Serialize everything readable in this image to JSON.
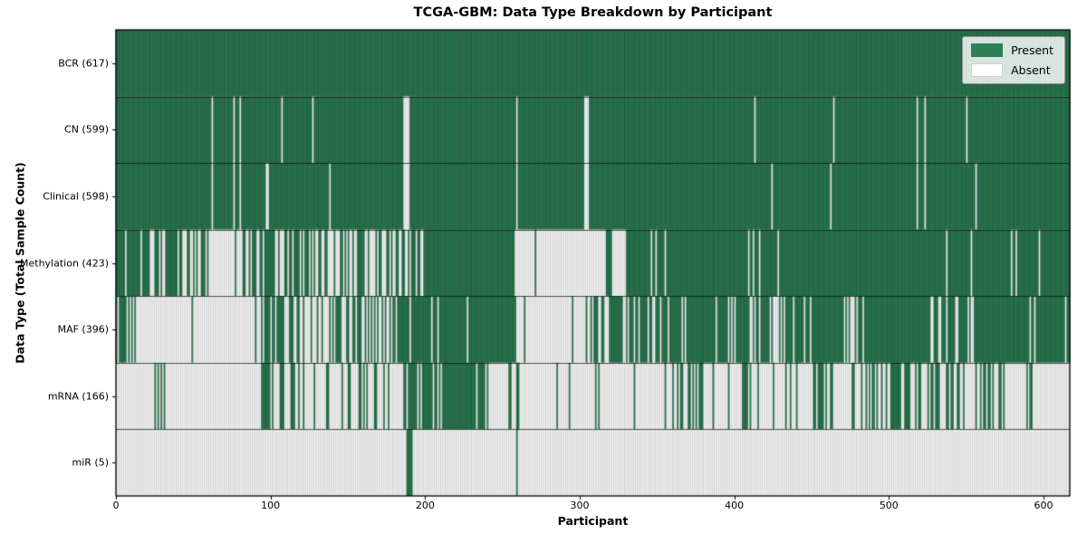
{
  "title": "TCGA-GBM: Data Type Breakdown by Participant",
  "xlabel": "Participant",
  "ylabel": "Data Type (Total Sample Count)",
  "legend": {
    "present": "Present",
    "absent": "Absent"
  },
  "colors": {
    "present_fill": "#2e8156",
    "present_edge": "rgba(12,48,30,0.85)",
    "absent_fill": "#ffffff",
    "absent_edge": "rgba(140,140,140,0.75)",
    "plot_border": "#000000",
    "row_divider": "rgba(0,0,0,0.85)",
    "tick": "#000000"
  },
  "chart_data": {
    "type": "heatmap",
    "title": "TCGA-GBM: Data Type Breakdown by Participant",
    "xlabel": "Participant",
    "ylabel": "Data Type (Total Sample Count)",
    "legend_entries": [
      "Present",
      "Absent"
    ],
    "legend_position": "upper right",
    "n_participants": 617,
    "xlim": [
      0,
      617
    ],
    "x_ticks": [
      0,
      100,
      200,
      300,
      400,
      500,
      600
    ],
    "rows": [
      {
        "name": "BCR",
        "label": "BCR (617)",
        "total_present": 617,
        "segments": [
          [
            0,
            617,
            1.0
          ]
        ],
        "absent": [],
        "present": []
      },
      {
        "name": "CN",
        "label": "CN (599)",
        "total_present": 599,
        "segments": [
          [
            0,
            617,
            1.0
          ]
        ],
        "absent": [
          62,
          76,
          80,
          107,
          127,
          186,
          187,
          188,
          189,
          259,
          303,
          304,
          305,
          413,
          464,
          518,
          523,
          550
        ],
        "present": []
      },
      {
        "name": "Clinical",
        "label": "Clinical (598)",
        "total_present": 598,
        "segments": [
          [
            0,
            617,
            1.0
          ]
        ],
        "absent": [
          62,
          76,
          80,
          97,
          98,
          138,
          186,
          187,
          188,
          189,
          259,
          303,
          304,
          305,
          424,
          462,
          518,
          523,
          556
        ],
        "present": []
      },
      {
        "name": "Methylation",
        "label": "Methylation (423)",
        "total_present": 423,
        "segments": [
          [
            0,
            18,
            0.85
          ],
          [
            18,
            60,
            0.5
          ],
          [
            60,
            86,
            0.12
          ],
          [
            86,
            103,
            0.85
          ],
          [
            103,
            140,
            0.42
          ],
          [
            140,
            200,
            0.5
          ],
          [
            200,
            259,
            0.93
          ],
          [
            259,
            317,
            0.02
          ],
          [
            317,
            321,
            0.9
          ],
          [
            321,
            330,
            0.05
          ],
          [
            330,
            412,
            0.93
          ],
          [
            412,
            413,
            0.0
          ],
          [
            413,
            617,
            0.96
          ]
        ],
        "absent": [],
        "present": []
      },
      {
        "name": "MAF",
        "label": "MAF (396)",
        "total_present": 396,
        "segments": [
          [
            0,
            8,
            0.45
          ],
          [
            8,
            30,
            0.15
          ],
          [
            30,
            94,
            0.04
          ],
          [
            94,
            115,
            0.5
          ],
          [
            115,
            131,
            0.25
          ],
          [
            131,
            160,
            0.7
          ],
          [
            160,
            184,
            0.5
          ],
          [
            184,
            259,
            0.92
          ],
          [
            259,
            307,
            0.06
          ],
          [
            307,
            323,
            0.75
          ],
          [
            323,
            355,
            0.65
          ],
          [
            355,
            408,
            0.85
          ],
          [
            408,
            440,
            0.6
          ],
          [
            440,
            475,
            0.9
          ],
          [
            475,
            480,
            0.3
          ],
          [
            480,
            517,
            0.92
          ],
          [
            517,
            556,
            0.8
          ],
          [
            556,
            617,
            0.95
          ]
        ],
        "absent": [],
        "present": []
      },
      {
        "name": "mRNA",
        "label": "mRNA (166)",
        "total_present": 166,
        "segments": [
          [
            0,
            25,
            0.0
          ],
          [
            25,
            32,
            0.5
          ],
          [
            32,
            94,
            0.0
          ],
          [
            94,
            122,
            0.6
          ],
          [
            122,
            128,
            0.1
          ],
          [
            128,
            138,
            0.6
          ],
          [
            138,
            155,
            0.2
          ],
          [
            155,
            163,
            0.55
          ],
          [
            163,
            185,
            0.3
          ],
          [
            185,
            212,
            0.7
          ],
          [
            212,
            241,
            0.8
          ],
          [
            241,
            259,
            0.04
          ],
          [
            259,
            261,
            1.0
          ],
          [
            261,
            285,
            0.02
          ],
          [
            285,
            286,
            1.0
          ],
          [
            286,
            310,
            0.02
          ],
          [
            310,
            314,
            0.8
          ],
          [
            314,
            335,
            0.02
          ],
          [
            335,
            336,
            1.0
          ],
          [
            336,
            355,
            0.02
          ],
          [
            355,
            356,
            1.0
          ],
          [
            356,
            365,
            0.05
          ],
          [
            365,
            381,
            0.55
          ],
          [
            381,
            391,
            0.3
          ],
          [
            391,
            405,
            0.1
          ],
          [
            405,
            411,
            0.7
          ],
          [
            411,
            422,
            0.4
          ],
          [
            422,
            438,
            0.15
          ],
          [
            438,
            463,
            0.45
          ],
          [
            463,
            481,
            0.1
          ],
          [
            481,
            508,
            0.55
          ],
          [
            508,
            528,
            0.35
          ],
          [
            528,
            547,
            0.55
          ],
          [
            547,
            561,
            0.25
          ],
          [
            561,
            575,
            0.5
          ],
          [
            575,
            587,
            0.05
          ],
          [
            587,
            593,
            0.85
          ],
          [
            593,
            617,
            0.0
          ]
        ],
        "absent": [],
        "present": []
      },
      {
        "name": "miR",
        "label": "miR (5)",
        "total_present": 5,
        "segments": [
          [
            0,
            617,
            0.0
          ]
        ],
        "absent": [],
        "present": [
          188,
          189,
          190,
          191,
          259
        ]
      }
    ]
  }
}
